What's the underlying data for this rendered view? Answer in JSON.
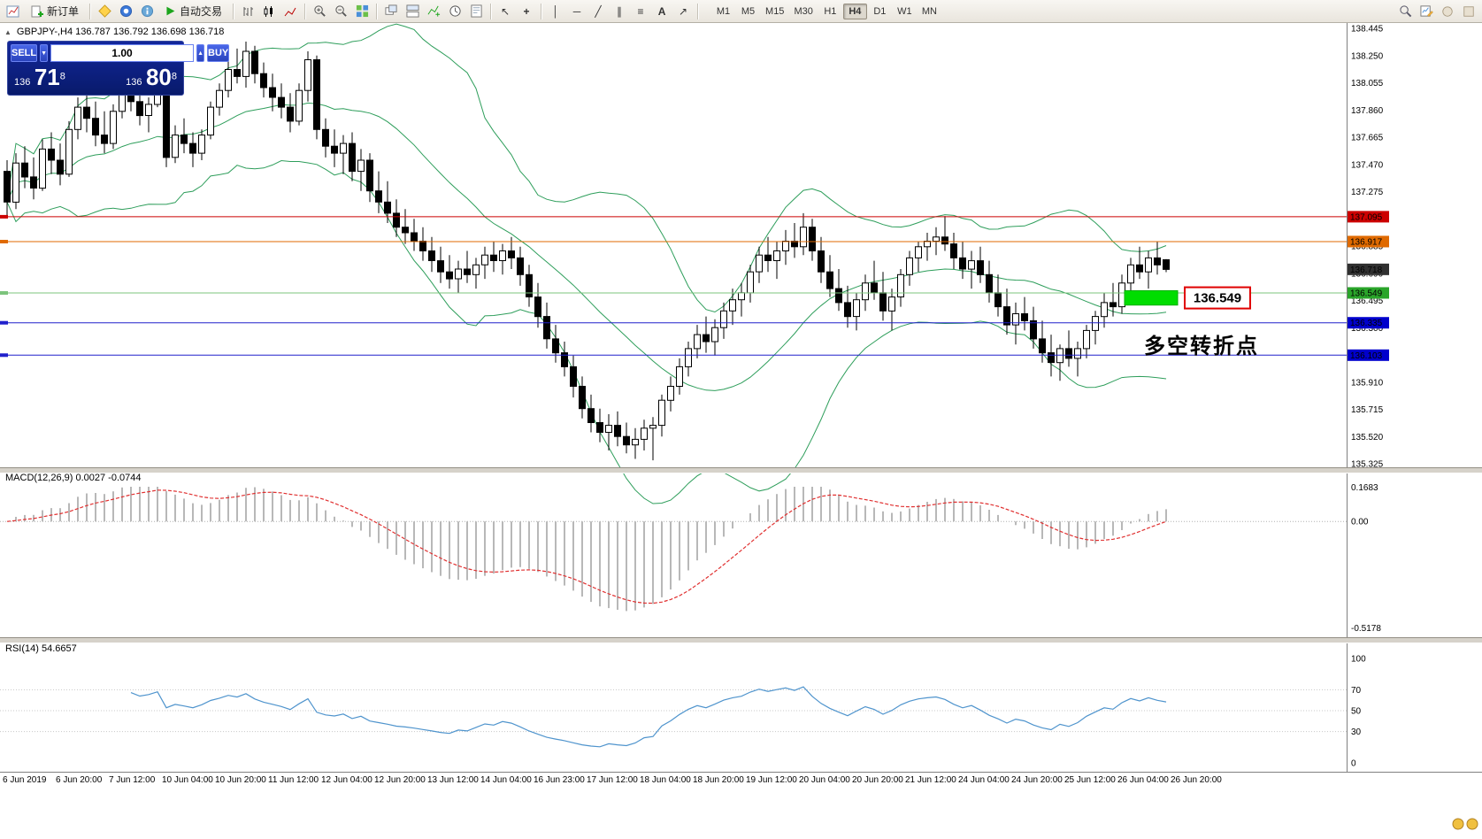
{
  "toolbar": {
    "new_order_label": "新订单",
    "autotrading_label": "自动交易",
    "timeframes": [
      "M1",
      "M5",
      "M15",
      "M30",
      "H1",
      "H4",
      "D1",
      "W1",
      "MN"
    ],
    "active_timeframe": "H4"
  },
  "icons": {
    "collapse": "▲",
    "cursor": "↖",
    "crosshair": "+",
    "vline": "│",
    "hline": "─",
    "trendline": "╱",
    "channel": "∥",
    "fibonacci": "≡",
    "text_tool": "A",
    "arrows": "↗",
    "lot_down": "▼",
    "lot_up": "▲"
  },
  "symbol_info": {
    "text": "GBPJPY-,H4  136.787 136.792 136.698 136.718"
  },
  "one_click": {
    "sell_label": "SELL",
    "buy_label": "BUY",
    "lot_value": "1.00",
    "sell_price_prefix": "136",
    "sell_price_main": "71",
    "sell_price_sup": "8",
    "buy_price_prefix": "136",
    "buy_price_main": "80",
    "buy_price_sup": "8"
  },
  "chart_data": {
    "type": "candlestick",
    "symbol": "GBPJPY-,H4",
    "price_axis": {
      "max": 138.445,
      "min": 135.325,
      "labels": [
        "138.445",
        "138.250",
        "138.055",
        "137.860",
        "137.665",
        "137.470",
        "137.275",
        "136.885",
        "136.690",
        "136.495",
        "136.300",
        "135.910",
        "135.715",
        "135.520",
        "135.325"
      ]
    },
    "x_labels": [
      "6 Jun 2019",
      "6 Jun 20:00",
      "7 Jun 12:00",
      "10 Jun 04:00",
      "10 Jun 20:00",
      "11 Jun 12:00",
      "12 Jun 04:00",
      "12 Jun 20:00",
      "13 Jun 12:00",
      "14 Jun 04:00",
      "16 Jun 23:00",
      "17 Jun 12:00",
      "18 Jun 04:00",
      "18 Jun 20:00",
      "19 Jun 12:00",
      "20 Jun 04:00",
      "20 Jun 20:00",
      "21 Jun 12:00",
      "24 Jun 04:00",
      "24 Jun 20:00",
      "25 Jun 12:00",
      "26 Jun 04:00",
      "26 Jun 20:00"
    ],
    "candles": [
      [
        137.42,
        137.5,
        137.1,
        137.2
      ],
      [
        137.2,
        137.55,
        137.15,
        137.48
      ],
      [
        137.48,
        137.6,
        137.3,
        137.38
      ],
      [
        137.38,
        137.52,
        137.22,
        137.3
      ],
      [
        137.3,
        137.65,
        137.28,
        137.58
      ],
      [
        137.58,
        137.7,
        137.4,
        137.5
      ],
      [
        137.5,
        137.62,
        137.32,
        137.4
      ],
      [
        137.4,
        137.78,
        137.38,
        137.72
      ],
      [
        137.72,
        137.95,
        137.65,
        137.88
      ],
      [
        137.88,
        137.98,
        137.7,
        137.8
      ],
      [
        137.8,
        137.92,
        137.6,
        137.68
      ],
      [
        137.68,
        137.85,
        137.55,
        137.62
      ],
      [
        137.62,
        137.9,
        137.58,
        137.85
      ],
      [
        137.85,
        138.05,
        137.8,
        137.98
      ],
      [
        137.98,
        138.1,
        137.85,
        137.92
      ],
      [
        137.92,
        138.02,
        137.75,
        137.82
      ],
      [
        137.82,
        137.95,
        137.7,
        137.9
      ],
      [
        137.9,
        138.12,
        137.88,
        138.05
      ],
      [
        138.05,
        138.15,
        137.45,
        137.52
      ],
      [
        137.52,
        137.75,
        137.48,
        137.68
      ],
      [
        137.68,
        137.8,
        137.55,
        137.62
      ],
      [
        137.62,
        137.7,
        137.45,
        137.55
      ],
      [
        137.55,
        137.72,
        137.5,
        137.68
      ],
      [
        137.68,
        137.92,
        137.65,
        137.88
      ],
      [
        137.88,
        138.05,
        137.82,
        138.0
      ],
      [
        138.0,
        138.22,
        137.95,
        138.15
      ],
      [
        138.15,
        138.3,
        138.05,
        138.1
      ],
      [
        138.1,
        138.35,
        138.02,
        138.28
      ],
      [
        138.28,
        138.32,
        138.05,
        138.12
      ],
      [
        138.12,
        138.2,
        137.95,
        138.02
      ],
      [
        138.02,
        138.12,
        137.85,
        137.95
      ],
      [
        137.95,
        138.05,
        137.8,
        137.88
      ],
      [
        137.88,
        137.98,
        137.7,
        137.78
      ],
      [
        137.78,
        138.05,
        137.75,
        138.0
      ],
      [
        138.0,
        138.28,
        137.92,
        138.22
      ],
      [
        138.22,
        138.25,
        137.65,
        137.72
      ],
      [
        137.72,
        137.8,
        137.52,
        137.6
      ],
      [
        137.6,
        137.72,
        137.45,
        137.55
      ],
      [
        137.55,
        137.68,
        137.4,
        137.62
      ],
      [
        137.62,
        137.7,
        137.35,
        137.42
      ],
      [
        137.42,
        137.58,
        137.28,
        137.5
      ],
      [
        137.5,
        137.55,
        137.2,
        137.28
      ],
      [
        137.28,
        137.42,
        137.12,
        137.2
      ],
      [
        137.2,
        137.35,
        137.05,
        137.12
      ],
      [
        137.12,
        137.22,
        136.95,
        137.02
      ],
      [
        137.02,
        137.15,
        136.9,
        136.98
      ],
      [
        136.98,
        137.08,
        136.85,
        136.92
      ],
      [
        136.92,
        137.02,
        136.78,
        136.85
      ],
      [
        136.85,
        136.95,
        136.7,
        136.78
      ],
      [
        136.78,
        136.88,
        136.62,
        136.7
      ],
      [
        136.7,
        136.82,
        136.58,
        136.65
      ],
      [
        136.65,
        136.78,
        136.55,
        136.72
      ],
      [
        136.72,
        136.85,
        136.62,
        136.68
      ],
      [
        136.68,
        136.8,
        136.58,
        136.75
      ],
      [
        136.75,
        136.88,
        136.65,
        136.82
      ],
      [
        136.82,
        136.92,
        136.7,
        136.78
      ],
      [
        136.78,
        136.9,
        136.68,
        136.85
      ],
      [
        136.85,
        136.95,
        136.72,
        136.8
      ],
      [
        136.8,
        136.88,
        136.6,
        136.68
      ],
      [
        136.68,
        136.75,
        136.45,
        136.52
      ],
      [
        136.52,
        136.62,
        136.3,
        136.38
      ],
      [
        136.38,
        136.48,
        136.15,
        136.22
      ],
      [
        136.22,
        136.32,
        136.05,
        136.12
      ],
      [
        136.12,
        136.2,
        135.95,
        136.02
      ],
      [
        136.02,
        136.1,
        135.8,
        135.88
      ],
      [
        135.88,
        135.95,
        135.65,
        135.72
      ],
      [
        135.72,
        135.82,
        135.55,
        135.62
      ],
      [
        135.62,
        135.72,
        135.48,
        135.55
      ],
      [
        135.55,
        135.68,
        135.42,
        135.6
      ],
      [
        135.6,
        135.7,
        135.45,
        135.52
      ],
      [
        135.52,
        135.62,
        135.4,
        135.46
      ],
      [
        135.46,
        135.58,
        135.36,
        135.5
      ],
      [
        135.5,
        135.64,
        135.42,
        135.58
      ],
      [
        135.58,
        135.66,
        135.35,
        135.6
      ],
      [
        135.6,
        135.82,
        135.52,
        135.78
      ],
      [
        135.78,
        135.95,
        135.7,
        135.88
      ],
      [
        135.88,
        136.08,
        135.82,
        136.02
      ],
      [
        136.02,
        136.2,
        135.95,
        136.15
      ],
      [
        136.15,
        136.32,
        136.08,
        136.25
      ],
      [
        136.25,
        136.38,
        136.12,
        136.2
      ],
      [
        136.2,
        136.36,
        136.1,
        136.3
      ],
      [
        136.3,
        136.48,
        136.22,
        136.42
      ],
      [
        136.42,
        136.58,
        136.32,
        136.5
      ],
      [
        136.5,
        136.62,
        136.38,
        136.55
      ],
      [
        136.55,
        136.75,
        136.48,
        136.7
      ],
      [
        136.7,
        136.88,
        136.62,
        136.82
      ],
      [
        136.82,
        136.95,
        136.7,
        136.78
      ],
      [
        136.78,
        136.92,
        136.65,
        136.85
      ],
      [
        136.85,
        137.0,
        136.75,
        136.92
      ],
      [
        136.92,
        137.05,
        136.8,
        136.88
      ],
      [
        136.88,
        137.12,
        136.82,
        137.02
      ],
      [
        137.02,
        137.08,
        136.78,
        136.85
      ],
      [
        136.85,
        136.95,
        136.62,
        136.7
      ],
      [
        136.7,
        136.82,
        136.52,
        136.58
      ],
      [
        136.58,
        136.72,
        136.42,
        136.48
      ],
      [
        136.48,
        136.6,
        136.3,
        136.38
      ],
      [
        136.38,
        136.55,
        136.28,
        136.5
      ],
      [
        136.5,
        136.68,
        136.42,
        136.62
      ],
      [
        136.62,
        136.78,
        136.5,
        136.55
      ],
      [
        136.55,
        136.7,
        136.35,
        136.42
      ],
      [
        136.42,
        136.58,
        136.28,
        136.52
      ],
      [
        136.52,
        136.72,
        136.45,
        136.68
      ],
      [
        136.68,
        136.85,
        136.6,
        136.8
      ],
      [
        136.8,
        136.92,
        136.7,
        136.88
      ],
      [
        136.88,
        136.98,
        136.78,
        136.92
      ],
      [
        136.92,
        137.02,
        136.82,
        136.95
      ],
      [
        136.95,
        137.1,
        136.85,
        136.9
      ],
      [
        136.9,
        136.98,
        136.72,
        136.8
      ],
      [
        136.8,
        136.92,
        136.65,
        136.72
      ],
      [
        136.72,
        136.85,
        136.58,
        136.78
      ],
      [
        136.78,
        136.88,
        136.62,
        136.68
      ],
      [
        136.68,
        136.78,
        136.48,
        136.55
      ],
      [
        136.55,
        136.68,
        136.38,
        136.45
      ],
      [
        136.45,
        136.58,
        136.25,
        136.32
      ],
      [
        136.32,
        136.48,
        136.18,
        136.4
      ],
      [
        136.4,
        136.52,
        136.28,
        136.35
      ],
      [
        136.35,
        136.45,
        136.15,
        136.22
      ],
      [
        136.22,
        136.35,
        136.05,
        136.12
      ],
      [
        136.12,
        136.25,
        135.95,
        136.05
      ],
      [
        136.05,
        136.18,
        135.92,
        136.15
      ],
      [
        136.15,
        136.28,
        136.02,
        136.08
      ],
      [
        136.08,
        136.2,
        135.95,
        136.15
      ],
      [
        136.15,
        136.32,
        136.08,
        136.28
      ],
      [
        136.28,
        136.42,
        136.18,
        136.38
      ],
      [
        136.38,
        136.55,
        136.3,
        136.48
      ],
      [
        136.48,
        136.62,
        136.38,
        136.45
      ],
      [
        136.45,
        136.68,
        136.4,
        136.62
      ],
      [
        136.62,
        136.8,
        136.55,
        136.75
      ],
      [
        136.75,
        136.88,
        136.65,
        136.7
      ],
      [
        136.7,
        136.85,
        136.58,
        136.8
      ],
      [
        136.8,
        136.92,
        136.68,
        136.75
      ],
      [
        136.787,
        136.792,
        136.698,
        136.718
      ]
    ],
    "bollinger": {
      "period": 20,
      "deviation": 2,
      "color": "#2e9e5b"
    },
    "hlines": [
      {
        "price": 137.095,
        "line_color": "#cc0000",
        "tag_color": "#cc0000",
        "label": "137.095"
      },
      {
        "price": 136.917,
        "line_color": "#e06a00",
        "tag_color": "#e06a00",
        "label": "136.917"
      },
      {
        "price": 136.549,
        "line_color": "#7cc47c",
        "tag_color": "#2aa52a",
        "label": "136.549"
      },
      {
        "price": 136.335,
        "line_color": "#2020cc",
        "tag_color": "#0000cc",
        "label": "136.335"
      },
      {
        "price": 136.103,
        "line_color": "#2020cc",
        "tag_color": "#0000cc",
        "label": "136.103"
      }
    ],
    "current_price": {
      "value": 136.718,
      "label": "136.718",
      "tag_color": "#303030"
    },
    "annotations": {
      "highlight_box": {
        "from_candle": 126.3,
        "to_candle": 132.3,
        "top_price": 136.565,
        "bottom_price": 136.462,
        "color": "#00dd00"
      },
      "price_callout": {
        "text": "136.549",
        "text_color": "#e00000",
        "border_color": "#e00000",
        "bg_color": "#ffffff"
      },
      "note": {
        "text": "多空转折点",
        "color": "#00a84f"
      }
    }
  },
  "macd": {
    "label": "MACD(12,26,9)",
    "value_main": "0.0027",
    "value_signal": "-0.0744",
    "fast": 12,
    "slow": 26,
    "signal": 9,
    "axis": {
      "max": "0.1683",
      "zero": "0.00",
      "min": "-0.5178"
    },
    "histogram_color": "#b8b8b8",
    "signal_color": "#e03030"
  },
  "rsi": {
    "label": "RSI(14)",
    "value": "54.6657",
    "period": 14,
    "axis_labels": [
      "100",
      "70",
      "50",
      "30",
      "0"
    ],
    "levels": [
      70,
      50,
      30
    ],
    "line_color": "#4f94cd"
  }
}
